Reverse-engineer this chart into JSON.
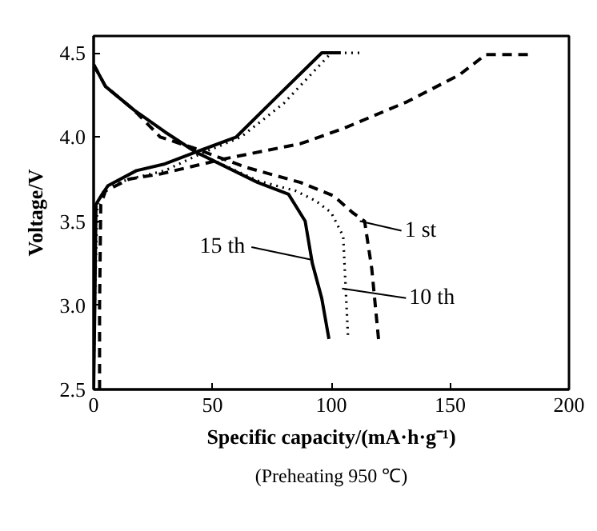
{
  "chart_data": {
    "type": "line",
    "xlabel": "Specific capacity/(mA·h·g⁻¹)",
    "ylabel": "Voltage/V",
    "xlim": [
      0,
      200
    ],
    "ylim": [
      2.5,
      4.6
    ],
    "xticks": [
      0,
      50,
      100,
      150,
      200
    ],
    "yticks": [
      2.5,
      {
        "value": 3.0,
        "label": "3.0"
      },
      3.5,
      {
        "value": 4.0,
        "label": "4.0"
      },
      4.5
    ],
    "grid": false,
    "marker": "none",
    "series": [
      {
        "color": "#000000",
        "line_style": "dashed",
        "x": [
          2.5,
          2.5,
          3,
          5,
          15,
          28,
          55,
          87,
          105,
          132,
          154,
          165,
          184
        ],
        "values": [
          2.5,
          3.0,
          3.6,
          3.68,
          3.75,
          3.78,
          3.87,
          3.96,
          4.05,
          4.21,
          4.37,
          4.49,
          4.49
        ]
      },
      {
        "color": "#000000",
        "line_style": "dashed",
        "x": [
          0,
          5,
          17,
          28,
          43,
          64,
          87,
          101,
          109,
          114,
          117,
          120
        ],
        "values": [
          4.43,
          4.3,
          4.16,
          4.0,
          3.93,
          3.82,
          3.73,
          3.65,
          3.55,
          3.5,
          3.22,
          2.78
        ]
      },
      {
        "color": "#000000",
        "line_style": "dotted",
        "x": [
          0,
          0.5,
          1.5,
          5,
          15,
          30,
          45,
          62,
          80,
          100,
          112
        ],
        "values": [
          2.5,
          3.0,
          3.6,
          3.7,
          3.75,
          3.8,
          3.9,
          4.0,
          4.2,
          4.5,
          4.5
        ]
      },
      {
        "color": "#000000",
        "line_style": "dotted",
        "x": [
          0,
          5,
          17,
          30,
          43,
          69,
          85,
          93.5,
          100,
          105,
          107
        ],
        "values": [
          4.43,
          4.3,
          4.16,
          4.03,
          3.91,
          3.74,
          3.68,
          3.62,
          3.55,
          3.41,
          2.82
        ]
      },
      {
        "color": "#000000",
        "line_style": "solid",
        "x": [
          0,
          0.5,
          1,
          3.6,
          6,
          18,
          30,
          43,
          60,
          75,
          96,
          104
        ],
        "values": [
          2.5,
          3.0,
          3.6,
          3.66,
          3.71,
          3.8,
          3.84,
          3.91,
          4.0,
          4.21,
          4.5,
          4.5
        ]
      },
      {
        "color": "#000000",
        "line_style": "solid",
        "x": [
          0,
          5,
          17,
          30,
          43,
          69,
          82,
          89,
          92,
          96,
          99
        ],
        "values": [
          4.43,
          4.3,
          4.16,
          4.03,
          3.91,
          3.73,
          3.66,
          3.5,
          3.25,
          3.04,
          2.8
        ]
      }
    ],
    "annotations": [
      {
        "text": "1 st",
        "x": 112,
        "y": 3.5
      },
      {
        "text": "15 th",
        "x": 92,
        "y": 3.27
      },
      {
        "text": "10 th",
        "x": 104.5,
        "y": 3.1
      },
      "(Preheating 950 ℃)"
    ]
  }
}
